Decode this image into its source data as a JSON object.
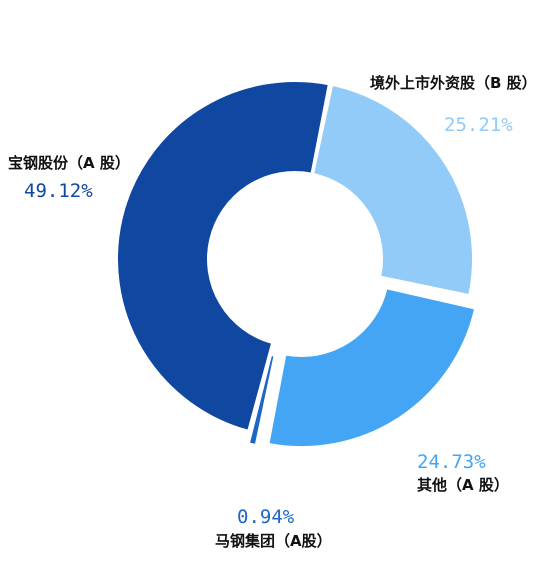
{
  "chart_data": {
    "type": "pie",
    "title": "",
    "donut": true,
    "slices": [
      {
        "label": "境外上市外资股（B 股）",
        "value": 25.21,
        "percent_text": "25.21%",
        "color": "#93cbf8",
        "exploded": false
      },
      {
        "label": "其他（A 股）",
        "value": 24.73,
        "percent_text": "24.73%",
        "color": "#43a5f4",
        "exploded": true
      },
      {
        "label": "马钢集团（A股）",
        "value": 0.94,
        "percent_text": "0.94%",
        "color": "#1e66c4",
        "exploded": true
      },
      {
        "label": "宝钢股份（A 股）",
        "value": 49.12,
        "percent_text": "49.12%",
        "color": "#0f47a1",
        "exploded": false
      }
    ],
    "legend": "none"
  }
}
